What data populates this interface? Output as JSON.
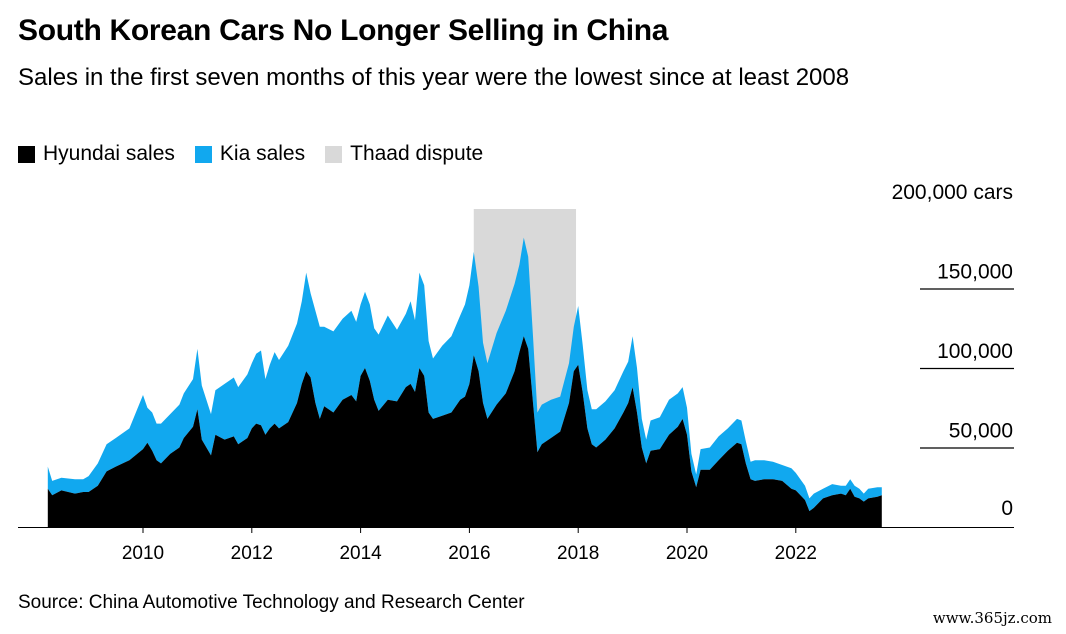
{
  "title": "South Korean Cars No Longer Selling in China",
  "subtitle": "Sales in the first seven months of this year were the lowest since at least 2008",
  "legend": [
    {
      "label": "Hyundai sales",
      "color": "#000000"
    },
    {
      "label": "Kia sales",
      "color": "#11a8ef"
    },
    {
      "label": "Thaad dispute",
      "color": "#d9d9d9"
    }
  ],
  "source": "Source: China Automotive Technology and Research Center",
  "watermark": "www.365jz.com",
  "chart_data": {
    "type": "area",
    "stacked": true,
    "x_range": [
      2008.25,
      2023.58
    ],
    "ylim": [
      0,
      200000
    ],
    "y_ticks": [
      {
        "value": 0,
        "label": "0"
      },
      {
        "value": 50000,
        "label": "50,000"
      },
      {
        "value": 100000,
        "label": "100,000"
      },
      {
        "value": 150000,
        "label": "150,000"
      },
      {
        "value": 200000,
        "label": "200,000 cars"
      }
    ],
    "x_ticks": [
      {
        "value": 2010,
        "label": "2010"
      },
      {
        "value": 2012,
        "label": "2012"
      },
      {
        "value": 2014,
        "label": "2014"
      },
      {
        "value": 2016,
        "label": "2016"
      },
      {
        "value": 2018,
        "label": "2018"
      },
      {
        "value": 2020,
        "label": "2020"
      },
      {
        "value": 2022,
        "label": "2022"
      }
    ],
    "highlight": {
      "label": "Thaad dispute",
      "x_start": 2016.08,
      "x_end": 2017.96
    },
    "series": [
      {
        "name": "Hyundai sales",
        "color": "#000000",
        "points": [
          [
            2008.25,
            24000
          ],
          [
            2008.33,
            20000
          ],
          [
            2008.5,
            23000
          ],
          [
            2008.75,
            21000
          ],
          [
            2008.9,
            22000
          ],
          [
            2009.0,
            22000
          ],
          [
            2009.17,
            26000
          ],
          [
            2009.33,
            35000
          ],
          [
            2009.5,
            38000
          ],
          [
            2009.75,
            42000
          ],
          [
            2010.0,
            49000
          ],
          [
            2010.08,
            53000
          ],
          [
            2010.17,
            48000
          ],
          [
            2010.25,
            42000
          ],
          [
            2010.33,
            40000
          ],
          [
            2010.5,
            46000
          ],
          [
            2010.67,
            50000
          ],
          [
            2010.75,
            56000
          ],
          [
            2010.92,
            63000
          ],
          [
            2011.0,
            74000
          ],
          [
            2011.08,
            55000
          ],
          [
            2011.25,
            45000
          ],
          [
            2011.33,
            58000
          ],
          [
            2011.5,
            55000
          ],
          [
            2011.67,
            57000
          ],
          [
            2011.75,
            52000
          ],
          [
            2011.92,
            56000
          ],
          [
            2012.0,
            62000
          ],
          [
            2012.08,
            65000
          ],
          [
            2012.17,
            64000
          ],
          [
            2012.25,
            58000
          ],
          [
            2012.33,
            62000
          ],
          [
            2012.42,
            65000
          ],
          [
            2012.5,
            62000
          ],
          [
            2012.67,
            66000
          ],
          [
            2012.83,
            78000
          ],
          [
            2012.92,
            90000
          ],
          [
            2013.0,
            98000
          ],
          [
            2013.08,
            94000
          ],
          [
            2013.17,
            78000
          ],
          [
            2013.25,
            68000
          ],
          [
            2013.33,
            76000
          ],
          [
            2013.5,
            72000
          ],
          [
            2013.67,
            80000
          ],
          [
            2013.83,
            83000
          ],
          [
            2013.92,
            79000
          ],
          [
            2014.0,
            95000
          ],
          [
            2014.08,
            100000
          ],
          [
            2014.17,
            92000
          ],
          [
            2014.25,
            80000
          ],
          [
            2014.33,
            73000
          ],
          [
            2014.5,
            80000
          ],
          [
            2014.67,
            79000
          ],
          [
            2014.83,
            88000
          ],
          [
            2014.92,
            90000
          ],
          [
            2015.0,
            85000
          ],
          [
            2015.08,
            100000
          ],
          [
            2015.17,
            95000
          ],
          [
            2015.25,
            72000
          ],
          [
            2015.33,
            68000
          ],
          [
            2015.5,
            70000
          ],
          [
            2015.67,
            72000
          ],
          [
            2015.83,
            80000
          ],
          [
            2015.92,
            82000
          ],
          [
            2016.0,
            90000
          ],
          [
            2016.08,
            108000
          ],
          [
            2016.17,
            98000
          ],
          [
            2016.25,
            78000
          ],
          [
            2016.33,
            68000
          ],
          [
            2016.5,
            77000
          ],
          [
            2016.67,
            84000
          ],
          [
            2016.83,
            98000
          ],
          [
            2016.92,
            110000
          ],
          [
            2017.0,
            120000
          ],
          [
            2017.08,
            112000
          ],
          [
            2017.17,
            78000
          ],
          [
            2017.25,
            47000
          ],
          [
            2017.33,
            52000
          ],
          [
            2017.5,
            56000
          ],
          [
            2017.67,
            60000
          ],
          [
            2017.83,
            78000
          ],
          [
            2017.92,
            98000
          ],
          [
            2018.0,
            102000
          ],
          [
            2018.08,
            85000
          ],
          [
            2018.17,
            62000
          ],
          [
            2018.25,
            52000
          ],
          [
            2018.33,
            50000
          ],
          [
            2018.5,
            55000
          ],
          [
            2018.67,
            62000
          ],
          [
            2018.83,
            72000
          ],
          [
            2018.92,
            78000
          ],
          [
            2019.0,
            88000
          ],
          [
            2019.08,
            72000
          ],
          [
            2019.17,
            50000
          ],
          [
            2019.25,
            40000
          ],
          [
            2019.33,
            48000
          ],
          [
            2019.5,
            49000
          ],
          [
            2019.67,
            58000
          ],
          [
            2019.83,
            63000
          ],
          [
            2019.92,
            68000
          ],
          [
            2020.0,
            58000
          ],
          [
            2020.08,
            35000
          ],
          [
            2020.17,
            25000
          ],
          [
            2020.25,
            36000
          ],
          [
            2020.42,
            36000
          ],
          [
            2020.58,
            42000
          ],
          [
            2020.75,
            48000
          ],
          [
            2020.92,
            53000
          ],
          [
            2021.0,
            52000
          ],
          [
            2021.08,
            40000
          ],
          [
            2021.17,
            30000
          ],
          [
            2021.25,
            29000
          ],
          [
            2021.42,
            30000
          ],
          [
            2021.58,
            30000
          ],
          [
            2021.75,
            29000
          ],
          [
            2021.92,
            24000
          ],
          [
            2022.0,
            23000
          ],
          [
            2022.17,
            17000
          ],
          [
            2022.25,
            10000
          ],
          [
            2022.33,
            12000
          ],
          [
            2022.5,
            18000
          ],
          [
            2022.67,
            20000
          ],
          [
            2022.83,
            21000
          ],
          [
            2022.92,
            20000
          ],
          [
            2023.0,
            24000
          ],
          [
            2023.08,
            19000
          ],
          [
            2023.17,
            18000
          ],
          [
            2023.25,
            16000
          ],
          [
            2023.33,
            18000
          ],
          [
            2023.5,
            19000
          ],
          [
            2023.58,
            20000
          ]
        ]
      },
      {
        "name": "Kia sales",
        "color": "#11a8ef",
        "points": [
          [
            2008.25,
            14000
          ],
          [
            2008.33,
            9000
          ],
          [
            2008.5,
            8000
          ],
          [
            2008.75,
            9000
          ],
          [
            2008.9,
            8000
          ],
          [
            2009.0,
            10000
          ],
          [
            2009.17,
            14000
          ],
          [
            2009.33,
            17000
          ],
          [
            2009.5,
            18000
          ],
          [
            2009.75,
            20000
          ],
          [
            2010.0,
            34000
          ],
          [
            2010.08,
            22000
          ],
          [
            2010.17,
            24000
          ],
          [
            2010.25,
            23000
          ],
          [
            2010.33,
            25000
          ],
          [
            2010.5,
            25000
          ],
          [
            2010.67,
            27000
          ],
          [
            2010.75,
            28000
          ],
          [
            2010.92,
            30000
          ],
          [
            2011.0,
            38000
          ],
          [
            2011.08,
            34000
          ],
          [
            2011.25,
            26000
          ],
          [
            2011.33,
            28000
          ],
          [
            2011.5,
            35000
          ],
          [
            2011.67,
            37000
          ],
          [
            2011.75,
            36000
          ],
          [
            2011.92,
            40000
          ],
          [
            2012.0,
            41000
          ],
          [
            2012.08,
            44000
          ],
          [
            2012.17,
            47000
          ],
          [
            2012.25,
            35000
          ],
          [
            2012.33,
            40000
          ],
          [
            2012.42,
            45000
          ],
          [
            2012.5,
            43000
          ],
          [
            2012.67,
            48000
          ],
          [
            2012.83,
            50000
          ],
          [
            2012.92,
            52000
          ],
          [
            2013.0,
            62000
          ],
          [
            2013.08,
            53000
          ],
          [
            2013.17,
            58000
          ],
          [
            2013.25,
            58000
          ],
          [
            2013.33,
            50000
          ],
          [
            2013.5,
            51000
          ],
          [
            2013.67,
            51000
          ],
          [
            2013.83,
            53000
          ],
          [
            2013.92,
            50000
          ],
          [
            2014.0,
            45000
          ],
          [
            2014.08,
            48000
          ],
          [
            2014.17,
            48000
          ],
          [
            2014.25,
            45000
          ],
          [
            2014.33,
            48000
          ],
          [
            2014.5,
            53000
          ],
          [
            2014.67,
            45000
          ],
          [
            2014.83,
            46000
          ],
          [
            2014.92,
            52000
          ],
          [
            2015.0,
            45000
          ],
          [
            2015.08,
            60000
          ],
          [
            2015.17,
            57000
          ],
          [
            2015.25,
            45000
          ],
          [
            2015.33,
            38000
          ],
          [
            2015.5,
            44000
          ],
          [
            2015.67,
            48000
          ],
          [
            2015.83,
            53000
          ],
          [
            2015.92,
            58000
          ],
          [
            2016.0,
            62000
          ],
          [
            2016.08,
            65000
          ],
          [
            2016.17,
            53000
          ],
          [
            2016.25,
            38000
          ],
          [
            2016.33,
            35000
          ],
          [
            2016.5,
            45000
          ],
          [
            2016.67,
            52000
          ],
          [
            2016.83,
            55000
          ],
          [
            2016.92,
            55000
          ],
          [
            2017.0,
            62000
          ],
          [
            2017.08,
            58000
          ],
          [
            2017.17,
            42000
          ],
          [
            2017.25,
            25000
          ],
          [
            2017.33,
            25000
          ],
          [
            2017.5,
            24000
          ],
          [
            2017.67,
            22000
          ],
          [
            2017.83,
            25000
          ],
          [
            2017.92,
            28000
          ],
          [
            2018.0,
            37000
          ],
          [
            2018.08,
            30000
          ],
          [
            2018.17,
            24000
          ],
          [
            2018.25,
            22000
          ],
          [
            2018.33,
            24000
          ],
          [
            2018.5,
            24000
          ],
          [
            2018.67,
            24000
          ],
          [
            2018.83,
            26000
          ],
          [
            2018.92,
            26000
          ],
          [
            2019.0,
            32000
          ],
          [
            2019.08,
            28000
          ],
          [
            2019.17,
            18000
          ],
          [
            2019.25,
            15000
          ],
          [
            2019.33,
            19000
          ],
          [
            2019.5,
            20000
          ],
          [
            2019.67,
            22000
          ],
          [
            2019.83,
            21000
          ],
          [
            2019.92,
            20000
          ],
          [
            2020.0,
            17000
          ],
          [
            2020.08,
            11000
          ],
          [
            2020.17,
            8000
          ],
          [
            2020.25,
            13000
          ],
          [
            2020.42,
            14000
          ],
          [
            2020.58,
            15000
          ],
          [
            2020.75,
            14000
          ],
          [
            2020.92,
            15000
          ],
          [
            2021.0,
            15000
          ],
          [
            2021.08,
            14000
          ],
          [
            2021.17,
            11000
          ],
          [
            2021.25,
            13000
          ],
          [
            2021.42,
            12000
          ],
          [
            2021.58,
            11000
          ],
          [
            2021.75,
            10000
          ],
          [
            2021.92,
            13000
          ],
          [
            2022.0,
            11000
          ],
          [
            2022.17,
            9000
          ],
          [
            2022.25,
            8000
          ],
          [
            2022.33,
            9000
          ],
          [
            2022.5,
            6000
          ],
          [
            2022.67,
            7000
          ],
          [
            2022.83,
            5000
          ],
          [
            2022.92,
            6000
          ],
          [
            2023.0,
            6000
          ],
          [
            2023.08,
            7000
          ],
          [
            2023.17,
            6000
          ],
          [
            2023.25,
            5000
          ],
          [
            2023.33,
            6000
          ],
          [
            2023.5,
            6000
          ],
          [
            2023.58,
            5000
          ]
        ]
      }
    ]
  }
}
